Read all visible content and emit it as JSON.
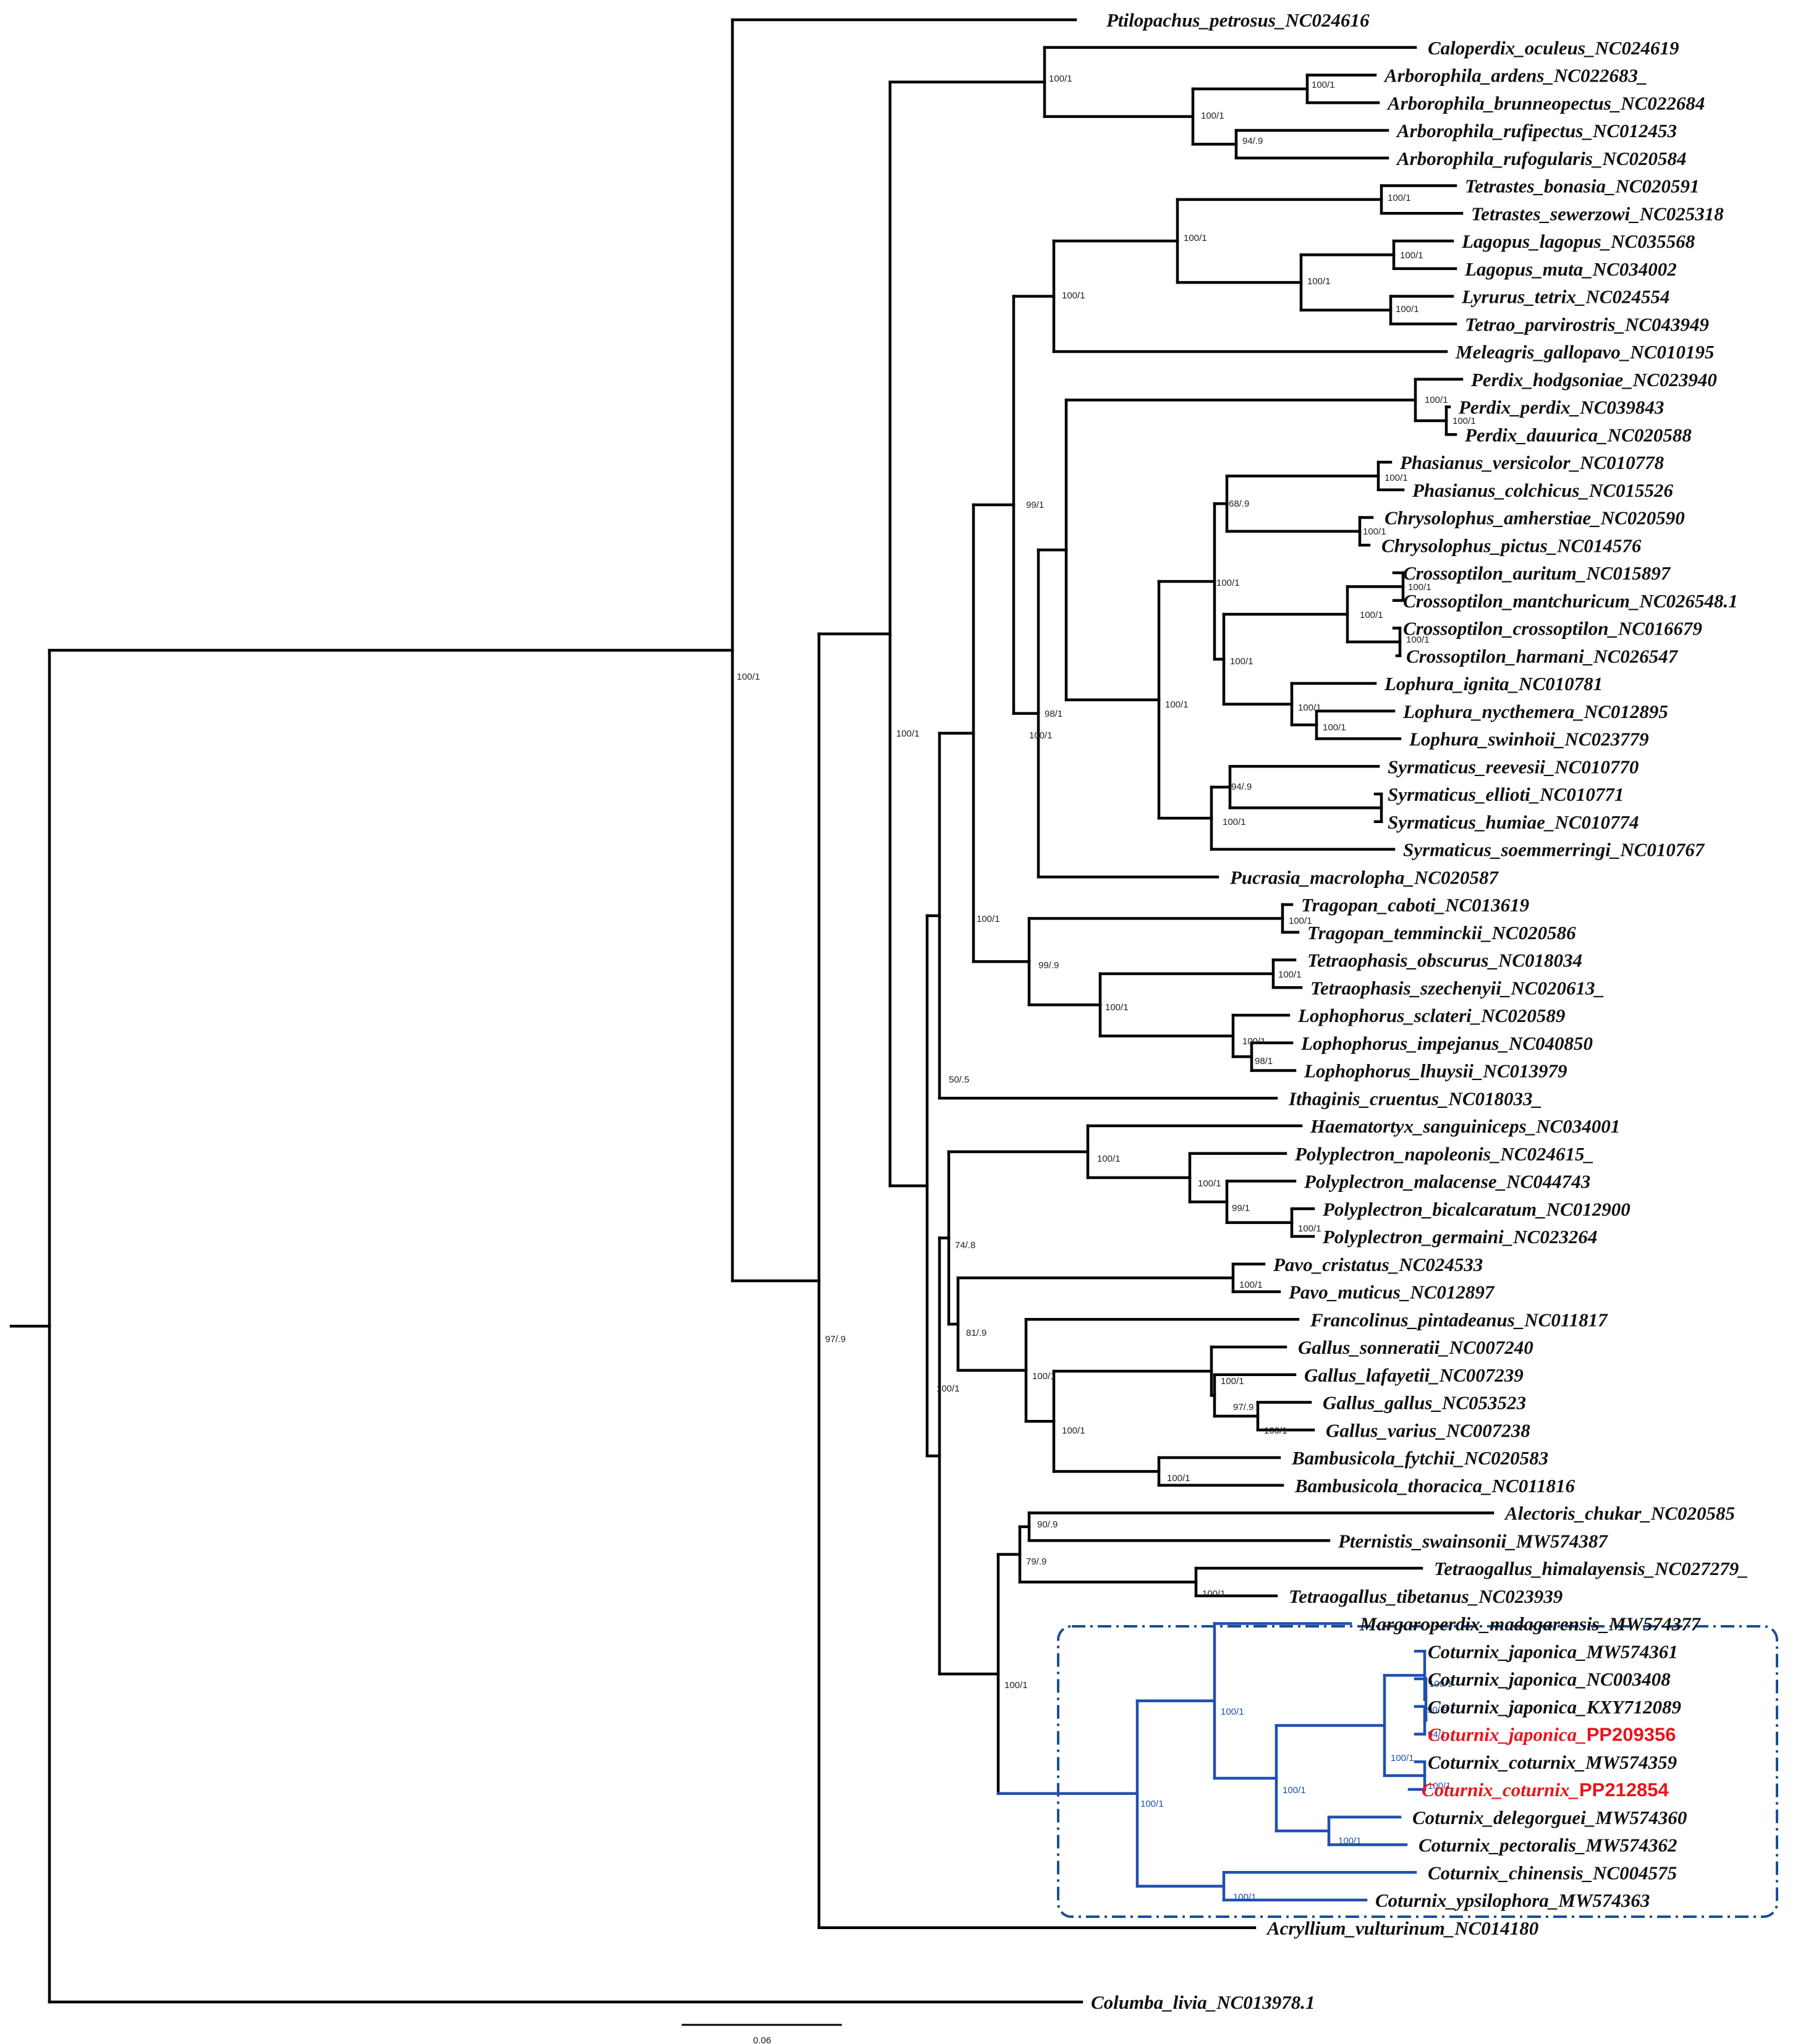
{
  "tips": [
    "Ptilopachus_petrosus_NC024616",
    "Caloperdix_oculeus_NC024619",
    "Arborophila_ardens_NC022683_",
    "Arborophila_brunneopectus_NC022684",
    "Arborophila_rufipectus_NC012453",
    "Arborophila_rufogularis_NC020584",
    "Tetrastes_bonasia_NC020591",
    "Tetrastes_sewerzowi_NC025318",
    "Lagopus_lagopus_NC035568",
    "Lagopus_muta_NC034002",
    "Lyrurus_tetrix_NC024554",
    "Tetrao_parvirostris_NC043949",
    "Meleagris_gallopavo_NC010195",
    "Perdix_hodgsoniae_NC023940",
    "Perdix_perdix_NC039843",
    "Perdix_dauurica_NC020588",
    "Phasianus_versicolor_NC010778",
    "Phasianus_colchicus_NC015526",
    "Chrysolophus_amherstiae_NC020590",
    "Chrysolophus_pictus_NC014576",
    "Crossoptilon_auritum_NC015897",
    "Crossoptilon_mantchuricum_NC026548.1",
    "Crossoptilon_crossoptilon_NC016679",
    "Crossoptilon_harmani_NC026547",
    "Lophura_ignita_NC010781",
    "Lophura_nycthemera_NC012895",
    "Lophura_swinhoii_NC023779",
    "Syrmaticus_reevesii_NC010770",
    "Syrmaticus_ellioti_NC010771",
    "Syrmaticus_humiae_NC010774",
    "Syrmaticus_soemmerringi_NC010767",
    "Pucrasia_macrolopha_NC020587",
    "Tragopan_caboti_NC013619",
    "Tragopan_temminckii_NC020586",
    "Tetraophasis_obscurus_NC018034",
    "Tetraophasis_szechenyii_NC020613_",
    "Lophophorus_sclateri_NC020589",
    "Lophophorus_impejanus_NC040850",
    "Lophophorus_lhuysii_NC013979",
    "Ithaginis_cruentus_NC018033_",
    "Haematortyx_sanguiniceps_NC034001",
    "Polyplectron_napoleonis_NC024615_",
    "Polyplectron_malacense_NC044743",
    "Polyplectron_bicalcaratum_NC012900",
    "Polyplectron_germaini_NC023264",
    "Pavo_cristatus_NC024533",
    "Pavo_muticus_NC012897",
    "Francolinus_pintadeanus_NC011817",
    "Gallus_sonneratii_NC007240",
    "Gallus_lafayetii_NC007239",
    "Gallus_gallus_NC053523",
    "Gallus_varius_NC007238",
    "Bambusicola_fytchii_NC020583",
    "Bambusicola_thoracica_NC011816",
    "Alectoris_chukar_NC020585",
    "Pternistis_swainsonii_MW574387",
    "Tetraogallus_himalayensis_NC027279_",
    "Tetraogallus_tibetanus_NC023939",
    "Margaroperdix_madagarensis_MW574377",
    "Coturnix_japonica_MW574361",
    "Coturnix_japonica_NC003408",
    "Coturnix_japonica_KXY712089",
    "Coturnix_japonica_PP209356",
    "Coturnix_coturnix_MW574359",
    "Coturnix_coturnix_PP212854",
    "Coturnix_delegorguei_MW574360",
    "Coturnix_pectoralis_MW574362",
    "Coturnix_chinensis_NC004575",
    "Coturnix_ypsilophora_MW574363",
    "Acryllium_vulturinum_NC014180",
    "Columba_livia_NC013978.1"
  ],
  "highlighted_new_sequences": [
    {
      "name": "Coturnix_japonica_",
      "accession": "PP209356"
    },
    {
      "name": "Coturnix_coturnix_",
      "accession": "PP212854"
    }
  ],
  "support": {
    "root_ingroup": "100/1",
    "galliformes": "100/1",
    "phasianidae": "97/.9",
    "caloperdix_arborophila": "100/1",
    "arborophila": "100/1",
    "arborophila_ardens_brunneo": "100/1",
    "arborophila_rufi": "94/.9",
    "grouse_turkey": "100/1",
    "grouse": "100/1",
    "tetrastes": "100/1",
    "lagopus_lyrurus": "100/1",
    "lagopus": "100/1",
    "lyrurus_tetrao": "100/1",
    "perdix_pheasants_node": "99/1",
    "pheasants": "98/1",
    "perdix": "100/1",
    "perdix_pd": "100/1",
    "phasianus_group": "100/1",
    "phasianus_chrysolophus": "68/.9",
    "phasianus": "100/1",
    "chrysolophus": "100/1",
    "cross_lophura": "100/1",
    "crossoptilon": "100/1",
    "cross_am": "100/1",
    "cross_ch": "100/1",
    "lophura": "100/1",
    "lophura_ns": "100/1",
    "syrmaticus": "100/1",
    "syrmaticus_re": "94/.9",
    "syrmaticus_eh": "100/1",
    "pucrasia_node": "100/1",
    "tragopan_node": "99/.9",
    "tragopan": "100/1",
    "tetraophasis_lophophorus": "100/1",
    "tetraophasis": "100/1",
    "lophophorus": "100/1",
    "lophophorus_il": "98/1",
    "ithaginis_node": "100/1",
    "upper_big": "50/.5",
    "polyplectron_group": "100/1",
    "polyplectron": "100/1",
    "polyplectron_bgm": "99/1",
    "polyplectron_bg": "100/1",
    "pavo_gallus": "74/.8",
    "pavo": "100/1",
    "francolinus_gallus": "81/.9",
    "gallus_bambusicola": "100/1",
    "gallus_b": "100/1",
    "gallus": "100/1",
    "gallus_lgv": "97/.9",
    "gallus_gv": "100/1",
    "bambusicola": "100/1",
    "phasianinae": "100/1",
    "alectoris_tetraogallus": "79/.9",
    "alectoris_pternistis": "90/.9",
    "tetraogallus": "100/1",
    "coturnix_alectoris": "100/1",
    "coturnix_all": "100/1",
    "margaroperdix_coturnix": "100/1",
    "coturnix_main": "100/1",
    "coturnix_jc": "100/1",
    "coturnix_jap_1": "100/1",
    "coturnix_jap_2": "90/.9",
    "coturnix_jap_3": "94/1",
    "coturnix_cot": "100/1",
    "coturnix_dp": "100/1",
    "coturnix_cy": "100/1"
  },
  "scale_bar_label": "0.06",
  "colors": {
    "branch": "#000000",
    "highlight_branch": "#1f4fb0",
    "highlight_box": "#1a4f93",
    "new_sequence": "#e8141b"
  }
}
